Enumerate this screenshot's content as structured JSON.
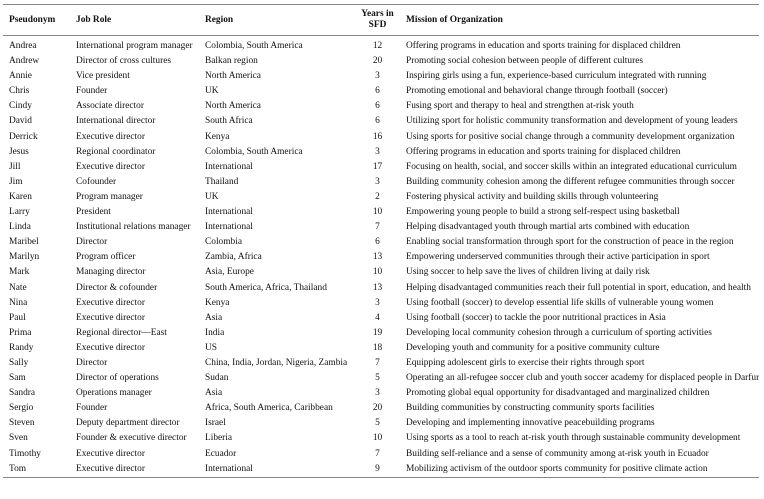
{
  "table": {
    "header": [
      "Pseudonym",
      "Job Role",
      "Region",
      "Years in SFD",
      "Mission of Organization"
    ],
    "rows": [
      [
        "Andrea",
        "International program manager",
        "Colombia, South America",
        12,
        "Offering programs in education and sports training for displaced children"
      ],
      [
        "Andrew",
        "Director of cross cultures",
        "Balkan region",
        20,
        "Promoting social cohesion between people of different cultures"
      ],
      [
        "Annie",
        "Vice president",
        "North America",
        3,
        "Inspiring girls using a fun, experience-based curriculum integrated with running"
      ],
      [
        "Chris",
        "Founder",
        "UK",
        6,
        "Promoting emotional and behavioral change through football (soccer)"
      ],
      [
        "Cindy",
        "Associate director",
        "North America",
        6,
        "Fusing sport and therapy to heal and strengthen at-risk youth"
      ],
      [
        "David",
        "International director",
        "South Africa",
        6,
        "Utilizing sport for holistic community transformation and development of young leaders"
      ],
      [
        "Derrick",
        "Executive director",
        "Kenya",
        16,
        "Using sports for positive social change through a community development organization"
      ],
      [
        "Jesus",
        "Regional coordinator",
        "Colombia, South America",
        3,
        "Offering programs in education and sports training for displaced children"
      ],
      [
        "Jill",
        "Executive director",
        "International",
        17,
        "Focusing on health, social, and soccer skills within an integrated educational curriculum"
      ],
      [
        "Jim",
        "Cofounder",
        "Thailand",
        3,
        "Building community cohesion among the different refugee communities through soccer"
      ],
      [
        "Karen",
        "Program manager",
        "UK",
        2,
        "Fostering physical activity and building skills through volunteering"
      ],
      [
        "Larry",
        "President",
        "International",
        10,
        "Empowering young people to build a strong self-respect using basketball"
      ],
      [
        "Linda",
        "Institutional relations manager",
        "International",
        7,
        "Helping disadvantaged youth through martial arts combined with education"
      ],
      [
        "Maribel",
        "Director",
        "Colombia",
        6,
        "Enabling social transformation through sport for the construction of peace in the region"
      ],
      [
        "Marilyn",
        "Program officer",
        "Zambia, Africa",
        13,
        "Empowering underserved communities through their active participation in sport"
      ],
      [
        "Mark",
        "Managing director",
        "Asia, Europe",
        10,
        "Using soccer to help save the lives of children living at daily risk"
      ],
      [
        "Nate",
        "Director & cofounder",
        "South America, Africa, Thailand",
        13,
        "Helping disadvantaged communities reach their full potential in sport, education, and health"
      ],
      [
        "Nina",
        "Executive director",
        "Kenya",
        3,
        "Using football (soccer) to develop essential life skills of vulnerable young women"
      ],
      [
        "Paul",
        "Executive director",
        "Asia",
        4,
        "Using football (soccer) to tackle the poor nutritional practices in Asia"
      ],
      [
        "Prima",
        "Regional director—East",
        "India",
        19,
        "Developing local community cohesion through a curriculum of sporting activities"
      ],
      [
        "Randy",
        "Executive director",
        "US",
        18,
        "Developing youth and community for a positive community culture"
      ],
      [
        "Sally",
        "Director",
        "China, India, Jordan, Nigeria, Zambia",
        7,
        "Equipping adolescent girls to exercise their rights through sport"
      ],
      [
        "Sam",
        "Director of operations",
        "Sudan",
        5,
        "Operating an all-refugee soccer club and youth soccer academy for displaced people in Darfur."
      ],
      [
        "Sandra",
        "Operations manager",
        "Asia",
        3,
        "Promoting global equal opportunity for disadvantaged and marginalized children"
      ],
      [
        "Sergio",
        "Founder",
        "Africa, South America, Caribbean",
        20,
        "Building communities by constructing community sports facilities"
      ],
      [
        "Steven",
        "Deputy department director",
        "Israel",
        5,
        "Developing and implementing innovative peacebuilding programs"
      ],
      [
        "Sven",
        "Founder & executive director",
        "Liberia",
        10,
        "Using sports as a tool to reach at-risk youth through sustainable community development"
      ],
      [
        "Timothy",
        "Executive director",
        "Ecuador",
        7,
        "Building self-reliance and a sense of community among at-risk youth in Ecuador"
      ],
      [
        "Tom",
        "Executive director",
        "International",
        9,
        "Mobilizing activism of the outdoor sports community for positive climate action"
      ]
    ]
  }
}
